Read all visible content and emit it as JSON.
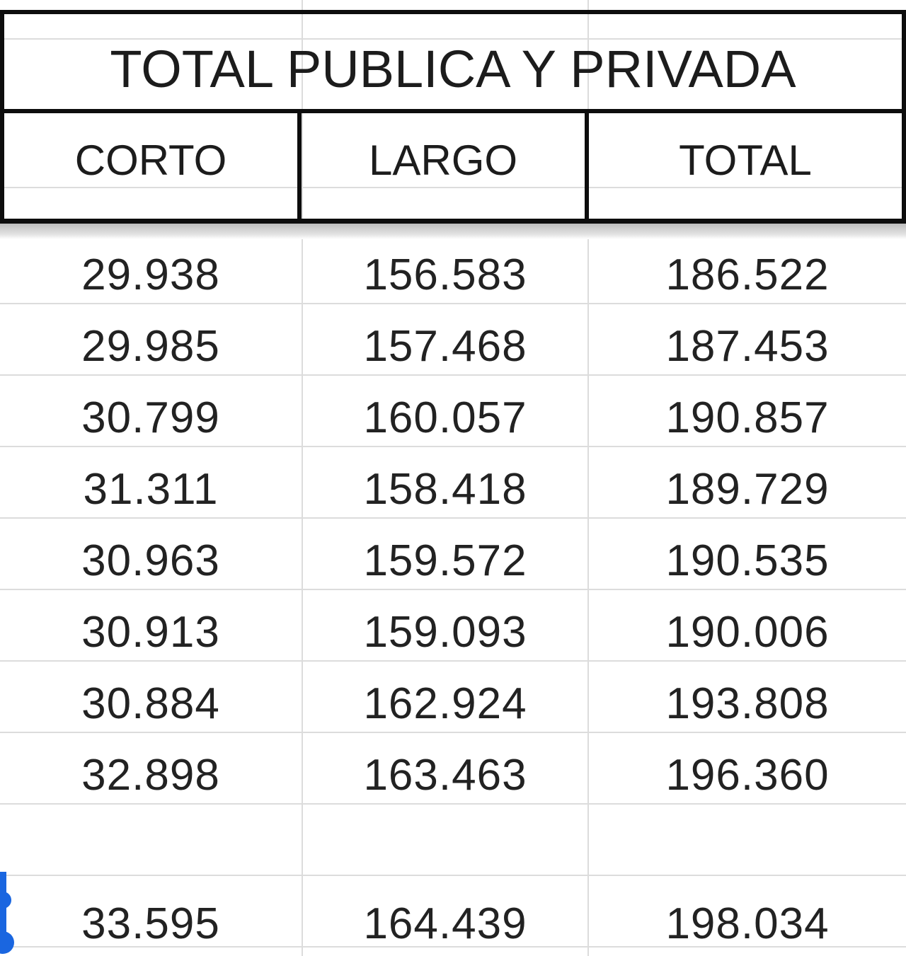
{
  "table": {
    "title": "TOTAL PUBLICA Y PRIVADA",
    "columns": [
      "CORTO",
      "LARGO",
      "TOTAL"
    ],
    "rows": [
      [
        "29.938",
        "156.583",
        "186.522"
      ],
      [
        "29.985",
        "157.468",
        "187.453"
      ],
      [
        "30.799",
        "160.057",
        "190.857"
      ],
      [
        "31.311",
        "158.418",
        "189.729"
      ],
      [
        "30.963",
        "159.572",
        "190.535"
      ],
      [
        "30.913",
        "159.093",
        "190.006"
      ],
      [
        "30.884",
        "162.924",
        "193.808"
      ],
      [
        "32.898",
        "163.463",
        "196.360"
      ],
      [
        "",
        "",
        ""
      ],
      [
        "33.595",
        "164.439",
        "198.034"
      ]
    ]
  },
  "colors": {
    "border": "#0d0d0d",
    "gridline": "#dcdcdc",
    "text": "#222222",
    "selection_marker": "#1a66e0"
  }
}
